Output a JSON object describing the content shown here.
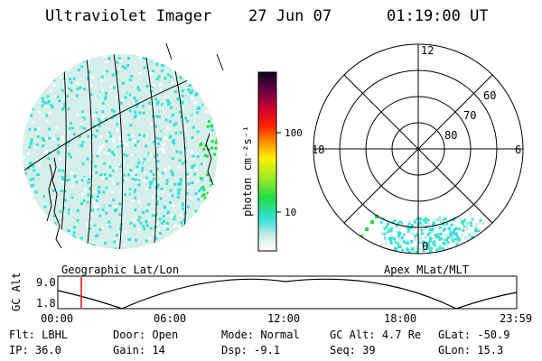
{
  "header": {
    "title": "Ultraviolet Imager",
    "date": "27 Jun 07",
    "time": "01:19:00 UT"
  },
  "colorbar": {
    "unit_label": "photon cm⁻²s⁻¹",
    "ticks": [
      "100",
      "10"
    ]
  },
  "polar": {
    "top_label": "12",
    "left_label": "18",
    "right_label": "6",
    "bottom_label": "0",
    "ring_labels": [
      "60",
      "70",
      "80"
    ]
  },
  "panels": {
    "left_label": "Geographic Lat/Lon",
    "right_label": "Apex MLat/MLT"
  },
  "altitude_plot": {
    "y_axis_label": "GC Alt",
    "y_ticks": [
      "9.0",
      "1.8"
    ],
    "x_ticks": [
      "00:00",
      "06:00",
      "12:00",
      "18:00",
      "23:59"
    ]
  },
  "info": {
    "filter_label": "Flt:",
    "filter_value": "LBHL",
    "door_label": "Door:",
    "door_value": "Open",
    "mode_label": "Mode:",
    "mode_value": "Normal",
    "gcalt_label": "GC Alt:",
    "gcalt_value": "4.7 Re",
    "glat_label": "GLat:",
    "glat_value": "-50.9",
    "ip_label": "IP:",
    "ip_value": "36.0",
    "gain_label": "Gain:",
    "gain_value": "14",
    "dsp_label": "Dsp:",
    "dsp_value": "-9.1",
    "seq_label": "Seq:",
    "seq_value": "39",
    "glon_label": "GLon:",
    "glon_value": "15.3"
  },
  "colors": {
    "cyan": "#33e0d8",
    "light": "#cfeee8",
    "green": "#22dd44",
    "marker": "#ff0000"
  }
}
